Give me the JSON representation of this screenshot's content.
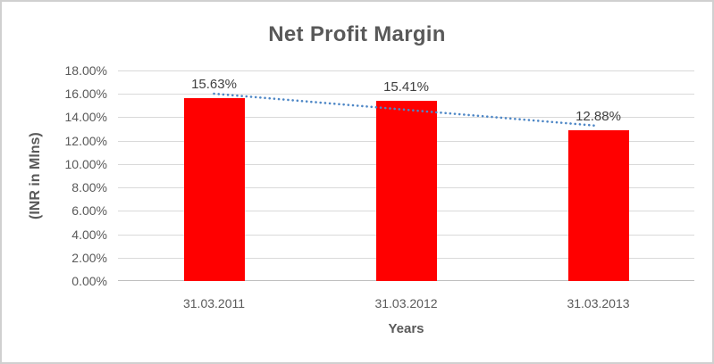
{
  "chart_data": {
    "type": "bar",
    "title": "Net Profit Margin",
    "xlabel": "Years",
    "ylabel": "(INR in Mlns)",
    "categories": [
      "31.03.2011",
      "31.03.2012",
      "31.03.2013"
    ],
    "values": [
      15.63,
      15.41,
      12.88
    ],
    "data_labels": [
      "15.63%",
      "15.41%",
      "12.88%"
    ],
    "ylim": [
      0,
      18
    ],
    "ytick_step": 2,
    "ytick_labels": [
      "0.00%",
      "2.00%",
      "4.00%",
      "6.00%",
      "8.00%",
      "10.00%",
      "12.00%",
      "14.00%",
      "16.00%",
      "18.00%"
    ],
    "grid": true,
    "legend": "none",
    "trendline": {
      "type": "linear",
      "style": "dotted"
    },
    "colors": {
      "bar": "#FF0000",
      "trendline": "#4E87C6",
      "title_text": "#595959",
      "axis_text": "#595959",
      "data_label_text": "#404040",
      "gridline": "#D9D9D9",
      "axis_line": "#BFBFBF",
      "chart_border": "#D0D0D0",
      "background": "#FFFFFF"
    }
  }
}
